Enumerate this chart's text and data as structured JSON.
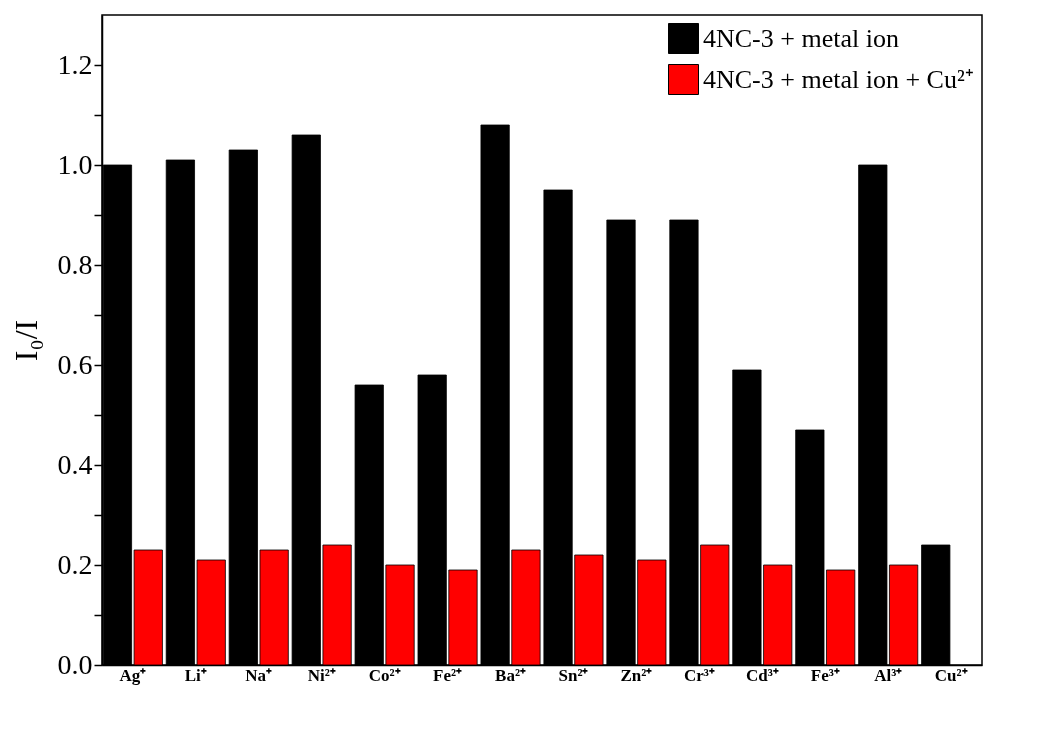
{
  "chart_data": {
    "type": "bar",
    "ylabel": "I₀/I",
    "categories": [
      "Ag⁺",
      "Li⁺",
      "Na⁺",
      "Ni²⁺",
      "Co²⁺",
      "Fe²⁺",
      "Ba²⁺",
      "Sn²⁺",
      "Zn²⁺",
      "Cr³⁺",
      "Cd³⁺",
      "Fe³⁺",
      "Al³⁺",
      "Cu²⁺"
    ],
    "series": [
      {
        "name": "4NC-3 + metal ion",
        "color": "#000000",
        "values": [
          1.0,
          1.01,
          1.03,
          1.06,
          0.56,
          0.58,
          1.08,
          0.95,
          0.89,
          0.89,
          0.59,
          0.47,
          1.0,
          0.24
        ]
      },
      {
        "name": "4NC-3 + metal ion + Cu²⁺",
        "color": "#ff0000",
        "values": [
          0.23,
          0.21,
          0.23,
          0.24,
          0.2,
          0.19,
          0.23,
          0.22,
          0.21,
          0.24,
          0.2,
          0.19,
          0.2,
          null
        ]
      }
    ],
    "ylim": [
      0,
      1.3
    ],
    "yticks": [
      {
        "value": 0,
        "label": "0.0"
      },
      {
        "value": 0.1,
        "label": null
      },
      0.2,
      {
        "value": 0.3,
        "label": null
      },
      0.4,
      {
        "value": 0.5,
        "label": null
      },
      0.6,
      {
        "value": 0.7,
        "label": null
      },
      0.8,
      {
        "value": 0.9,
        "label": null
      },
      {
        "value": 1,
        "label": "1.0"
      },
      {
        "value": 1.1,
        "label": null
      },
      1.2
    ],
    "grid": false,
    "legend": "top right"
  }
}
